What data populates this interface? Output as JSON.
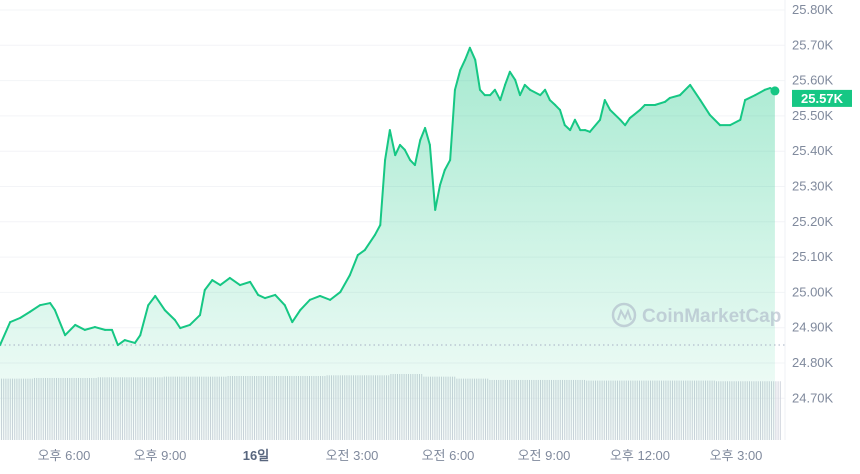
{
  "chart_data": {
    "type": "area",
    "current_price_label": "25.57K",
    "watermark": "CoinMarketCap",
    "y_tick_labels": [
      "25.80K",
      "25.70K",
      "25.60K",
      "25.50K",
      "25.40K",
      "25.30K",
      "25.20K",
      "25.10K",
      "25.00K",
      "24.90K",
      "24.80K",
      "24.70K"
    ],
    "y_ticks": [
      25.8,
      25.7,
      25.6,
      25.5,
      25.4,
      25.3,
      25.2,
      25.1,
      25.0,
      24.9,
      24.8,
      24.7
    ],
    "ylim": [
      24.6,
      25.825
    ],
    "x_tick_labels": [
      {
        "label": "오후 6:00",
        "time": "18:00",
        "bold": false
      },
      {
        "label": "오후 9:00",
        "time": "21:00",
        "bold": false
      },
      {
        "label": "16일",
        "time": "00:00",
        "bold": true
      },
      {
        "label": "오전 3:00",
        "time": "03:00",
        "bold": false
      },
      {
        "label": "오전 6:00",
        "time": "06:00",
        "bold": false
      },
      {
        "label": "오전 9:00",
        "time": "09:00",
        "bold": false
      },
      {
        "label": "오후 12:00",
        "time": "12:00",
        "bold": false
      },
      {
        "label": "오후 3:00",
        "time": "15:00",
        "bold": false
      }
    ],
    "baseline_price": 24.848,
    "colors": {
      "line": "#16c784",
      "area_top": "#16c784",
      "down": "#ea3943",
      "volume": "#cfd3dc",
      "label_bg": "#16c784"
    },
    "series": [
      {
        "values": [
          [
            "16:00",
            24.848
          ],
          [
            "16:19",
            24.913
          ],
          [
            "16:38",
            24.925
          ],
          [
            "16:56",
            24.942
          ],
          [
            "17:15",
            24.961
          ],
          [
            "17:34",
            24.967
          ],
          [
            "17:43",
            24.947
          ],
          [
            "18:02",
            24.876
          ],
          [
            "18:21",
            24.905
          ],
          [
            "18:39",
            24.891
          ],
          [
            "18:58",
            24.899
          ],
          [
            "19:17",
            24.891
          ],
          [
            "19:30",
            24.891
          ],
          [
            "19:41",
            24.848
          ],
          [
            "19:54",
            24.862
          ],
          [
            "20:13",
            24.854
          ],
          [
            "20:23",
            24.876
          ],
          [
            "20:38",
            24.961
          ],
          [
            "20:51",
            24.987
          ],
          [
            "21:09",
            24.947
          ],
          [
            "21:28",
            24.919
          ],
          [
            "21:38",
            24.896
          ],
          [
            "21:56",
            24.905
          ],
          [
            "22:15",
            24.933
          ],
          [
            "22:24",
            25.004
          ],
          [
            "22:38",
            25.032
          ],
          [
            "22:53",
            25.018
          ],
          [
            "23:11",
            25.038
          ],
          [
            "23:30",
            25.018
          ],
          [
            "23:49",
            25.027
          ],
          [
            "00:04",
            24.99
          ],
          [
            "00:17",
            24.981
          ],
          [
            "00:36",
            24.99
          ],
          [
            "00:54",
            24.961
          ],
          [
            "01:08",
            24.913
          ],
          [
            "01:23",
            24.947
          ],
          [
            "01:41",
            24.976
          ],
          [
            "02:00",
            24.987
          ],
          [
            "02:19",
            24.976
          ],
          [
            "02:38",
            24.998
          ],
          [
            "02:56",
            25.046
          ],
          [
            "03:11",
            25.103
          ],
          [
            "03:24",
            25.117
          ],
          [
            "03:43",
            25.16
          ],
          [
            "03:53",
            25.188
          ],
          [
            "04:02",
            25.372
          ],
          [
            "04:11",
            25.457
          ],
          [
            "04:21",
            25.386
          ],
          [
            "04:30",
            25.415
          ],
          [
            "04:39",
            25.401
          ],
          [
            "04:49",
            25.372
          ],
          [
            "04:58",
            25.358
          ],
          [
            "05:08",
            25.429
          ],
          [
            "05:17",
            25.463
          ],
          [
            "05:26",
            25.415
          ],
          [
            "05:36",
            25.231
          ],
          [
            "05:45",
            25.301
          ],
          [
            "05:54",
            25.344
          ],
          [
            "06:04",
            25.372
          ],
          [
            "06:13",
            25.571
          ],
          [
            "06:23",
            25.627
          ],
          [
            "06:32",
            25.656
          ],
          [
            "06:41",
            25.69
          ],
          [
            "06:51",
            25.656
          ],
          [
            "07:00",
            25.571
          ],
          [
            "07:09",
            25.556
          ],
          [
            "07:19",
            25.556
          ],
          [
            "07:28",
            25.571
          ],
          [
            "07:38",
            25.542
          ],
          [
            "07:47",
            25.585
          ],
          [
            "07:56",
            25.622
          ],
          [
            "08:06",
            25.599
          ],
          [
            "08:15",
            25.556
          ],
          [
            "08:24",
            25.585
          ],
          [
            "08:34",
            25.571
          ],
          [
            "08:53",
            25.556
          ],
          [
            "09:02",
            25.571
          ],
          [
            "09:11",
            25.542
          ],
          [
            "09:21",
            25.528
          ],
          [
            "09:30",
            25.514
          ],
          [
            "09:39",
            25.471
          ],
          [
            "09:49",
            25.457
          ],
          [
            "09:58",
            25.486
          ],
          [
            "10:08",
            25.457
          ],
          [
            "10:17",
            25.457
          ],
          [
            "10:26",
            25.452
          ],
          [
            "10:45",
            25.486
          ],
          [
            "10:54",
            25.542
          ],
          [
            "11:04",
            25.514
          ],
          [
            "11:23",
            25.486
          ],
          [
            "11:32",
            25.471
          ],
          [
            "11:41",
            25.491
          ],
          [
            "12:00",
            25.514
          ],
          [
            "12:09",
            25.528
          ],
          [
            "12:28",
            25.528
          ],
          [
            "12:47",
            25.537
          ],
          [
            "12:56",
            25.548
          ],
          [
            "13:15",
            25.556
          ],
          [
            "13:34",
            25.585
          ],
          [
            "13:53",
            25.542
          ],
          [
            "14:11",
            25.5
          ],
          [
            "14:30",
            25.471
          ],
          [
            "14:49",
            25.471
          ],
          [
            "15:08",
            25.486
          ],
          [
            "15:17",
            25.542
          ],
          [
            "15:36",
            25.556
          ],
          [
            "15:54",
            25.571
          ],
          [
            "16:04",
            25.576
          ],
          [
            "16:13",
            25.568
          ]
        ]
      }
    ],
    "volume_relative": [
      0.93,
      0.94,
      0.94,
      0.95,
      0.95,
      0.96,
      0.96,
      0.97,
      0.97,
      0.97,
      0.98,
      0.98,
      1.0,
      0.96,
      0.93,
      0.91,
      0.91,
      0.91,
      0.9,
      0.9,
      0.9,
      0.9,
      0.89,
      0.89
    ]
  }
}
